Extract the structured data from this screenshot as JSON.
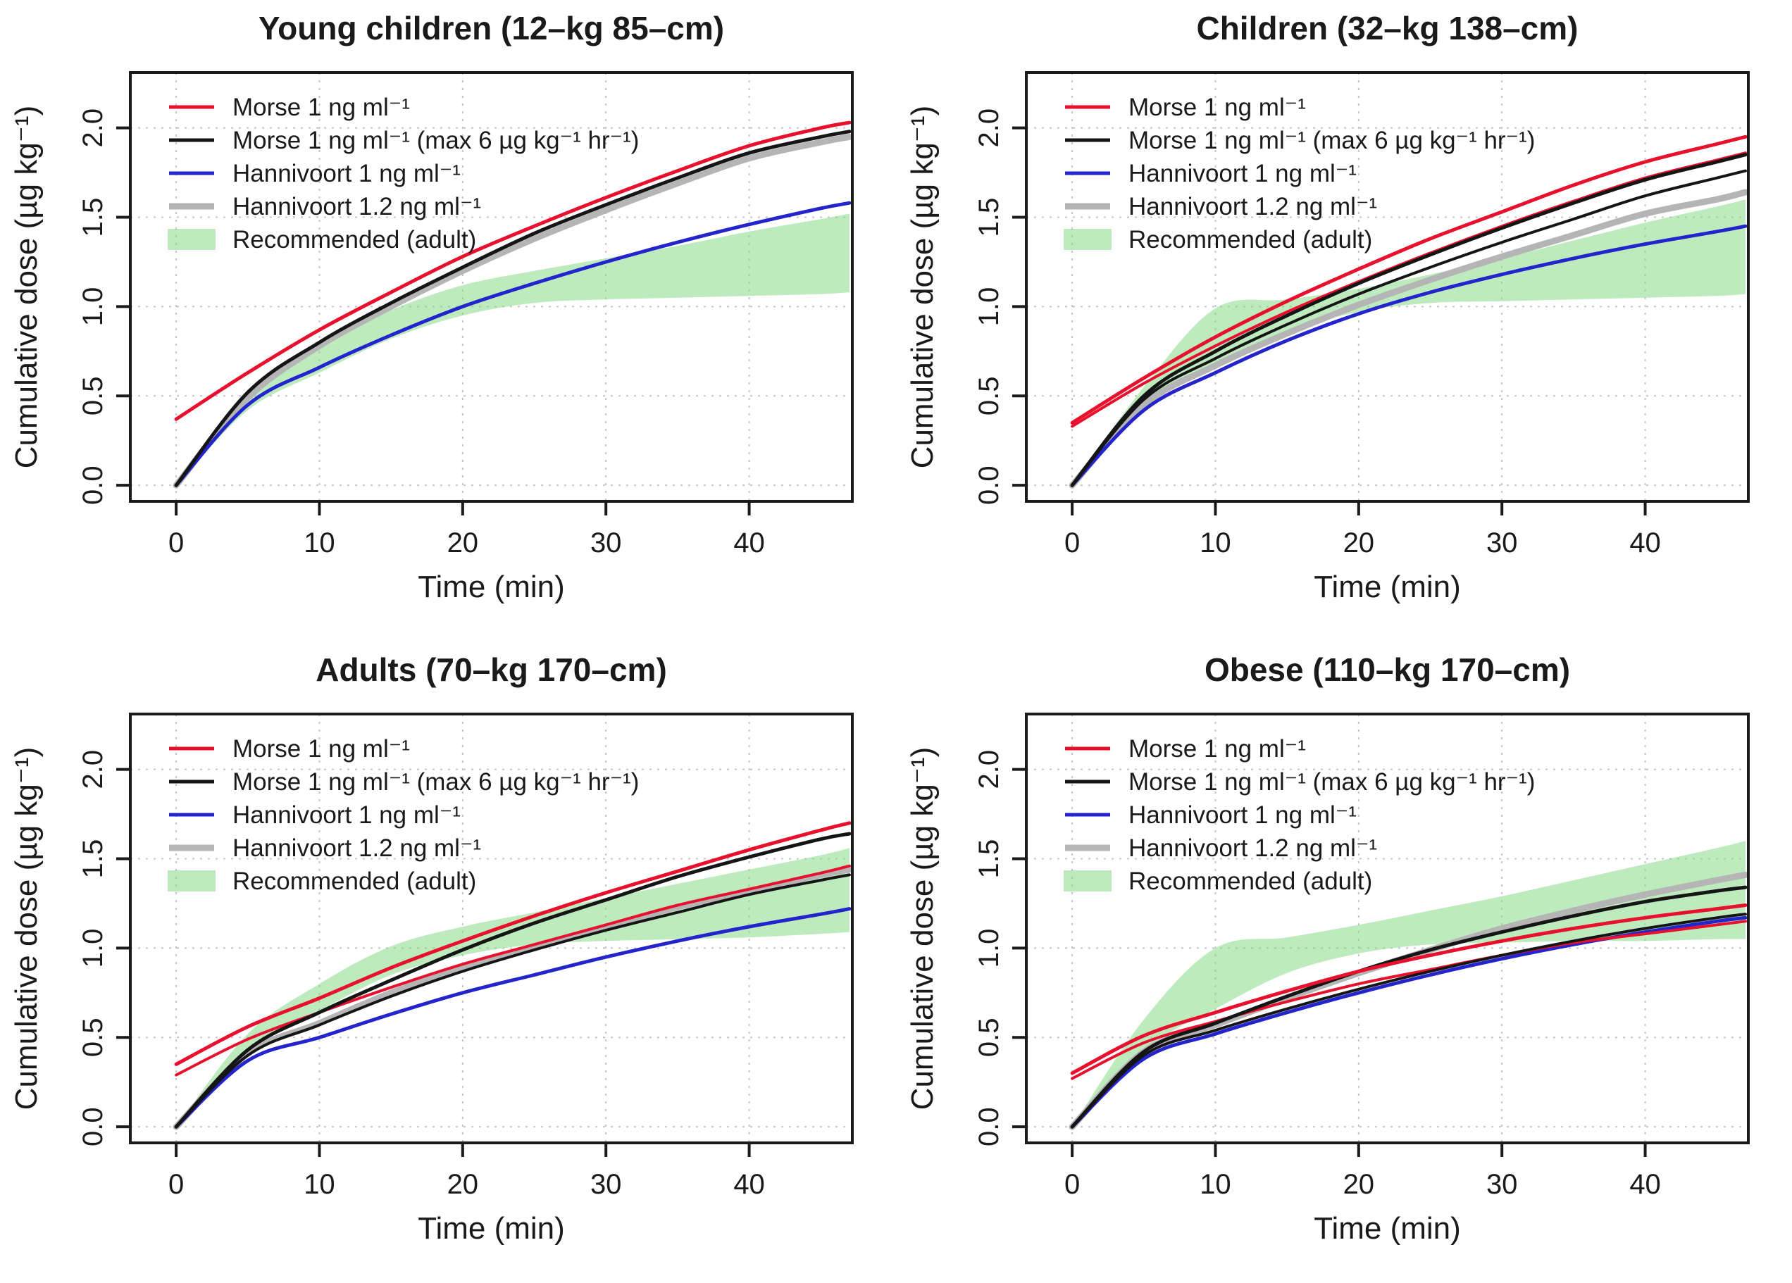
{
  "figure": {
    "background": "#ffffff",
    "axis_color": "#1a1a1a",
    "grid_color": "#c4c4c4",
    "text_color": "#1a1a1a"
  },
  "legend_items": [
    {
      "label": "Morse 1 ng ml⁻¹",
      "color": "#e8112d",
      "type": "line",
      "lw": 5
    },
    {
      "label": "Morse 1 ng ml⁻¹ (max 6 µg kg⁻¹ hr⁻¹)",
      "color": "#151515",
      "type": "line",
      "lw": 5
    },
    {
      "label": "Hannivoort 1 ng ml⁻¹",
      "color": "#2424cc",
      "type": "line",
      "lw": 5
    },
    {
      "label": "Hannivoort 1.2 ng ml⁻¹",
      "color": "#b5b5b5",
      "type": "line",
      "lw": 9
    },
    {
      "label": "Recommended (adult)",
      "color": "#7ed87e",
      "type": "patch"
    }
  ],
  "chart_data": [
    {
      "type": "line",
      "title": "Young children (12–kg 85–cm)",
      "xlabel": "Time (min)",
      "ylabel": "Cumulative dose (µg kg⁻¹)",
      "xlim": [
        -3.2,
        47.2
      ],
      "ylim": [
        -0.09,
        2.31
      ],
      "xticks": [
        0,
        10,
        20,
        30,
        40
      ],
      "yticks": [
        0,
        0.5,
        1,
        1.5,
        2
      ],
      "ytick_labels": [
        "0.0",
        "0.5",
        "1.0",
        "1.5",
        "2.0"
      ],
      "grid": true,
      "legend_position": "top-left",
      "x": [
        0,
        5,
        10,
        15,
        20,
        25,
        30,
        35,
        40,
        45,
        47
      ],
      "band": {
        "label": "Recommended (adult)",
        "color": "#7ed87e",
        "opacity": 0.5,
        "top": [
          0,
          0.5,
          0.79,
          0.98,
          1.12,
          1.2,
          1.27,
          1.34,
          1.42,
          1.49,
          1.52
        ],
        "bottom": [
          0,
          0.42,
          0.63,
          0.82,
          0.95,
          1.02,
          1.04,
          1.05,
          1.06,
          1.07,
          1.08
        ]
      },
      "series": [
        {
          "name": "Hannivoort 1.2 ng ml⁻¹",
          "color": "#b5b5b5",
          "width": 9,
          "in_legend": true,
          "values": [
            0,
            0.49,
            0.78,
            1.0,
            1.2,
            1.38,
            1.54,
            1.69,
            1.83,
            1.92,
            1.95
          ]
        },
        {
          "name": "Hannivoort 1 ng ml⁻¹",
          "color": "#2424cc",
          "width": 5,
          "in_legend": true,
          "values": [
            0,
            0.45,
            0.66,
            0.84,
            1.0,
            1.13,
            1.25,
            1.36,
            1.46,
            1.55,
            1.58
          ]
        },
        {
          "name": "Morse 1 ng ml⁻¹ (max 6 µg kg⁻¹ hr⁻¹)",
          "color": "#151515",
          "width": 5,
          "in_legend": true,
          "values": [
            0,
            0.52,
            0.8,
            1.02,
            1.22,
            1.41,
            1.57,
            1.72,
            1.86,
            1.95,
            1.98
          ]
        },
        {
          "name": "Morse 1 ng ml⁻¹",
          "color": "#e8112d",
          "width": 5,
          "in_legend": true,
          "values": [
            0.37,
            0.63,
            0.87,
            1.08,
            1.28,
            1.45,
            1.61,
            1.76,
            1.9,
            2.0,
            2.03
          ]
        }
      ]
    },
    {
      "type": "line",
      "title": "Children (32–kg 138–cm)",
      "xlabel": "Time (min)",
      "ylabel": "Cumulative dose (µg kg⁻¹)",
      "xlim": [
        -3.2,
        47.2
      ],
      "ylim": [
        -0.09,
        2.31
      ],
      "xticks": [
        0,
        10,
        20,
        30,
        40
      ],
      "yticks": [
        0,
        0.5,
        1,
        1.5,
        2
      ],
      "ytick_labels": [
        "0.0",
        "0.5",
        "1.0",
        "1.5",
        "2.0"
      ],
      "grid": true,
      "legend_position": "top-left",
      "x": [
        0,
        5,
        10,
        15,
        20,
        25,
        30,
        35,
        40,
        45,
        47
      ],
      "band": {
        "label": "Recommended (adult)",
        "color": "#7ed87e",
        "opacity": 0.5,
        "top": [
          0,
          0.55,
          0.99,
          1.04,
          1.1,
          1.18,
          1.27,
          1.37,
          1.47,
          1.56,
          1.6
        ],
        "bottom": [
          0,
          0.44,
          0.67,
          0.86,
          0.97,
          1.02,
          1.03,
          1.04,
          1.05,
          1.06,
          1.07
        ]
      },
      "series": [
        {
          "name": "Hannivoort 1.2 ng ml⁻¹",
          "color": "#b5b5b5",
          "width": 9,
          "in_legend": true,
          "values": [
            0,
            0.45,
            0.67,
            0.85,
            1.01,
            1.15,
            1.28,
            1.4,
            1.52,
            1.6,
            1.64
          ]
        },
        {
          "name": "Hannivoort 1 ng ml⁻¹",
          "color": "#2424cc",
          "width": 5,
          "in_legend": true,
          "values": [
            0,
            0.42,
            0.63,
            0.81,
            0.96,
            1.08,
            1.18,
            1.27,
            1.35,
            1.42,
            1.45
          ]
        },
        {
          "name": "Morse 1 ng ml⁻¹ (second line)",
          "color": "#e8112d",
          "width": 4,
          "in_legend": false,
          "values": [
            0.33,
            0.57,
            0.78,
            0.97,
            1.14,
            1.3,
            1.45,
            1.59,
            1.72,
            1.82,
            1.86
          ]
        },
        {
          "name": "Morse 1 ng ml⁻¹ (max, second line)",
          "color": "#151515",
          "width": 4,
          "in_legend": false,
          "values": [
            0,
            0.48,
            0.71,
            0.9,
            1.07,
            1.22,
            1.36,
            1.49,
            1.62,
            1.72,
            1.76
          ]
        },
        {
          "name": "Morse 1 ng ml⁻¹ (max 6 µg kg⁻¹ hr⁻¹)",
          "color": "#151515",
          "width": 5,
          "in_legend": true,
          "values": [
            0,
            0.5,
            0.75,
            0.95,
            1.13,
            1.29,
            1.44,
            1.58,
            1.71,
            1.81,
            1.85
          ]
        },
        {
          "name": "Morse 1 ng ml⁻¹",
          "color": "#e8112d",
          "width": 5,
          "in_legend": true,
          "values": [
            0.35,
            0.6,
            0.83,
            1.03,
            1.21,
            1.38,
            1.53,
            1.68,
            1.81,
            1.91,
            1.95
          ]
        }
      ]
    },
    {
      "type": "line",
      "title": "Adults (70–kg 170–cm)",
      "xlabel": "Time (min)",
      "ylabel": "Cumulative dose (µg kg⁻¹)",
      "xlim": [
        -3.2,
        47.2
      ],
      "ylim": [
        -0.09,
        2.31
      ],
      "xticks": [
        0,
        10,
        20,
        30,
        40
      ],
      "yticks": [
        0,
        0.5,
        1,
        1.5,
        2
      ],
      "ytick_labels": [
        "0.0",
        "0.5",
        "1.0",
        "1.5",
        "2.0"
      ],
      "grid": true,
      "legend_position": "top-left",
      "x": [
        0,
        5,
        10,
        15,
        20,
        25,
        30,
        35,
        40,
        45,
        47
      ],
      "band": {
        "label": "Recommended (adult)",
        "color": "#7ed87e",
        "opacity": 0.5,
        "top": [
          0,
          0.52,
          0.8,
          1.01,
          1.12,
          1.2,
          1.28,
          1.36,
          1.44,
          1.52,
          1.56
        ],
        "bottom": [
          0,
          0.43,
          0.65,
          0.85,
          0.96,
          1.02,
          1.04,
          1.05,
          1.06,
          1.08,
          1.09
        ]
      },
      "series": [
        {
          "name": "Hannivoort 1.2 ng ml⁻¹",
          "color": "#b5b5b5",
          "width": 9,
          "in_legend": true,
          "values": [
            0,
            0.41,
            0.58,
            0.75,
            0.89,
            1.01,
            1.12,
            1.23,
            1.32,
            1.41,
            1.44
          ]
        },
        {
          "name": "Hannivoort 1 ng ml⁻¹",
          "color": "#2424cc",
          "width": 5,
          "in_legend": true,
          "values": [
            0,
            0.37,
            0.5,
            0.63,
            0.75,
            0.85,
            0.95,
            1.04,
            1.12,
            1.19,
            1.22
          ]
        },
        {
          "name": "Morse 1 ng ml⁻¹ (second line)",
          "color": "#e8112d",
          "width": 4,
          "in_legend": false,
          "values": [
            0.29,
            0.49,
            0.64,
            0.78,
            0.91,
            1.02,
            1.13,
            1.24,
            1.33,
            1.42,
            1.46
          ]
        },
        {
          "name": "Morse 1 ng ml⁻¹ (max, second line)",
          "color": "#151515",
          "width": 4,
          "in_legend": false,
          "values": [
            0,
            0.4,
            0.57,
            0.73,
            0.87,
            0.99,
            1.1,
            1.2,
            1.3,
            1.38,
            1.41
          ]
        },
        {
          "name": "Morse 1 ng ml⁻¹ (max 6 µg kg⁻¹ hr⁻¹)",
          "color": "#151515",
          "width": 5,
          "in_legend": true,
          "values": [
            0,
            0.43,
            0.64,
            0.82,
            0.99,
            1.14,
            1.27,
            1.4,
            1.51,
            1.61,
            1.64
          ]
        },
        {
          "name": "Morse 1 ng ml⁻¹",
          "color": "#e8112d",
          "width": 5,
          "in_legend": true,
          "values": [
            0.35,
            0.56,
            0.72,
            0.89,
            1.04,
            1.18,
            1.31,
            1.43,
            1.55,
            1.66,
            1.7
          ]
        }
      ]
    },
    {
      "type": "line",
      "title": "Obese (110–kg 170–cm)",
      "xlabel": "Time (min)",
      "ylabel": "Cumulative dose (µg kg⁻¹)",
      "xlim": [
        -3.2,
        47.2
      ],
      "ylim": [
        -0.09,
        2.31
      ],
      "xticks": [
        0,
        10,
        20,
        30,
        40
      ],
      "yticks": [
        0,
        0.5,
        1,
        1.5,
        2
      ],
      "ytick_labels": [
        "0.0",
        "0.5",
        "1.0",
        "1.5",
        "2.0"
      ],
      "grid": true,
      "legend_position": "top-left",
      "x": [
        0,
        5,
        10,
        15,
        20,
        25,
        30,
        35,
        40,
        45,
        47
      ],
      "band": {
        "label": "Recommended (adult)",
        "color": "#7ed87e",
        "opacity": 0.5,
        "top": [
          0,
          0.6,
          1.0,
          1.06,
          1.13,
          1.21,
          1.29,
          1.38,
          1.47,
          1.56,
          1.6
        ],
        "bottom": [
          0,
          0.43,
          0.66,
          0.86,
          0.97,
          1.02,
          1.03,
          1.04,
          1.04,
          1.05,
          1.05
        ]
      },
      "series": [
        {
          "name": "Hannivoort 1.2 ng ml⁻¹",
          "color": "#b5b5b5",
          "width": 9,
          "in_legend": true,
          "values": [
            0,
            0.42,
            0.57,
            0.72,
            0.86,
            0.99,
            1.11,
            1.21,
            1.3,
            1.38,
            1.41
          ]
        },
        {
          "name": "Hannivoort 1 ng ml⁻¹",
          "color": "#2424cc",
          "width": 5,
          "in_legend": true,
          "values": [
            0,
            0.38,
            0.52,
            0.64,
            0.75,
            0.85,
            0.94,
            1.02,
            1.09,
            1.15,
            1.17
          ]
        },
        {
          "name": "Morse 1 ng ml⁻¹ (second line)",
          "color": "#e8112d",
          "width": 4,
          "in_legend": false,
          "values": [
            0.27,
            0.47,
            0.59,
            0.7,
            0.8,
            0.88,
            0.96,
            1.03,
            1.08,
            1.13,
            1.15
          ]
        },
        {
          "name": "Morse 1 ng ml⁻¹ (max, second line)",
          "color": "#151515",
          "width": 4,
          "in_legend": false,
          "values": [
            0,
            0.4,
            0.54,
            0.66,
            0.77,
            0.87,
            0.96,
            1.04,
            1.11,
            1.17,
            1.19
          ]
        },
        {
          "name": "Morse 1 ng ml⁻¹ (max 6 µg kg⁻¹ hr⁻¹)",
          "color": "#151515",
          "width": 5,
          "in_legend": true,
          "values": [
            0,
            0.42,
            0.58,
            0.73,
            0.87,
            0.99,
            1.09,
            1.18,
            1.26,
            1.32,
            1.34
          ]
        },
        {
          "name": "Morse 1 ng ml⁻¹",
          "color": "#e8112d",
          "width": 5,
          "in_legend": true,
          "values": [
            0.3,
            0.51,
            0.64,
            0.76,
            0.87,
            0.96,
            1.04,
            1.11,
            1.17,
            1.22,
            1.24
          ]
        }
      ]
    }
  ]
}
